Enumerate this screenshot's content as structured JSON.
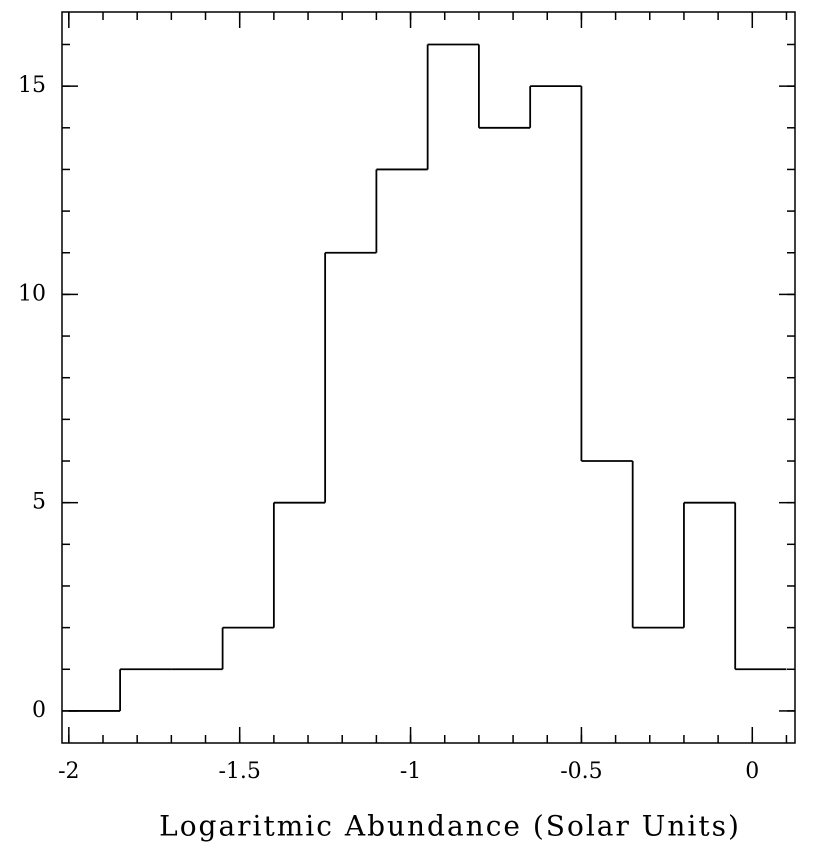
{
  "chart_data": {
    "type": "histogram",
    "x_label": "Logaritmic Abundance (Solar Units)",
    "bins": [
      -2,
      -1.85,
      -1.7,
      -1.55,
      -1.4,
      -1.25,
      -1.1,
      -0.95,
      -0.8,
      -0.65,
      -0.5,
      -0.35,
      -0.2,
      -0.05,
      0.1
    ],
    "values": [
      0,
      1,
      1,
      2,
      5,
      11,
      13,
      16,
      14,
      15,
      6,
      2,
      5,
      1
    ],
    "color": "#000000",
    "xlim": [
      -2.02,
      0.125
    ],
    "ylim": [
      -0.77,
      16.78
    ],
    "xticks": [
      -2,
      -1.5,
      -1,
      -0.5,
      0
    ],
    "yticks": [
      0,
      5,
      10,
      15
    ]
  }
}
